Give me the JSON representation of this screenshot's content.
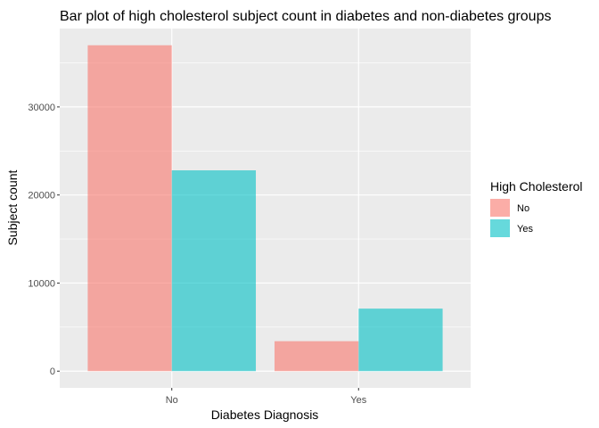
{
  "chart_data": {
    "type": "bar",
    "title": "Bar plot of high cholesterol subject count in diabetes and non-diabetes groups",
    "xlabel": "Diabetes Diagnosis",
    "ylabel": "Subject count",
    "categories": [
      "No",
      "Yes"
    ],
    "series": [
      {
        "name": "No",
        "color": "#F8766D",
        "values": [
          37000,
          3400
        ]
      },
      {
        "name": "Yes",
        "color": "#00BFC4",
        "values": [
          22800,
          7100
        ]
      }
    ],
    "yticks": [
      0,
      10000,
      20000,
      30000
    ],
    "ytick_labels": [
      "0",
      "10000",
      "20000",
      "30000"
    ],
    "ylim": [
      -1900,
      38900
    ],
    "grid": true,
    "legend": {
      "title": "High Cholesterol",
      "placement": "right"
    },
    "panel_background": "#EBEBEB"
  }
}
